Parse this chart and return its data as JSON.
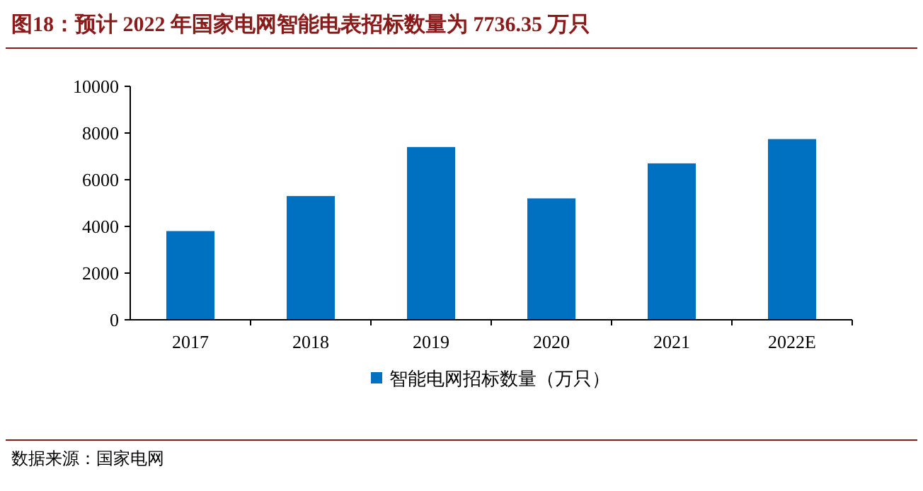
{
  "chart_data": {
    "type": "bar",
    "title": "图18：预计 2022 年国家电网智能电表招标数量为 7736.35 万只",
    "categories": [
      "2017",
      "2018",
      "2019",
      "2020",
      "2021",
      "2022E"
    ],
    "series": [
      {
        "name": "智能电网招标数量（万只）",
        "color": "#0070c0",
        "values": [
          3800,
          5300,
          7400,
          5200,
          6700,
          7740
        ]
      }
    ],
    "ylim": [
      0,
      10000
    ],
    "yticks": [
      0,
      2000,
      4000,
      6000,
      8000,
      10000
    ],
    "grid": false,
    "legend": "bottom",
    "annotations": [
      "数据来源：国家电网"
    ]
  }
}
